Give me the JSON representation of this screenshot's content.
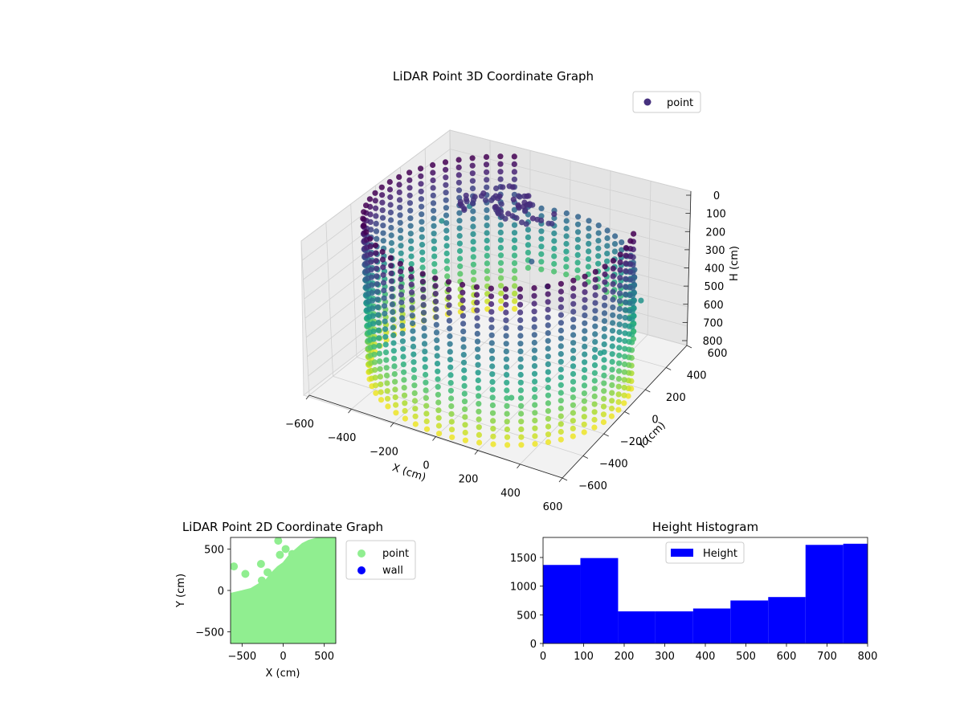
{
  "chart_data": [
    {
      "type": "scatter",
      "projection": "3d",
      "title": "LiDAR Point 3D Coordinate Graph",
      "xlabel": "X (cm)",
      "ylabel": "Y (cm)",
      "zlabel": "H (cm)",
      "x_ticks": [
        "−600",
        "−400",
        "−200",
        "0",
        "200",
        "400",
        "600"
      ],
      "y_ticks": [
        "−600",
        "−400",
        "−200",
        "0",
        "200",
        "400",
        "600"
      ],
      "z_ticks": [
        "0",
        "100",
        "200",
        "300",
        "400",
        "500",
        "600",
        "700",
        "800"
      ],
      "xlim": [
        -600,
        600
      ],
      "ylim": [
        -600,
        600
      ],
      "zlim": [
        0,
        800
      ],
      "z_inverted": true,
      "colormap": "viridis",
      "legend": {
        "position": "upper-right",
        "entries": [
          {
            "label": "point",
            "color": "#46317e"
          }
        ]
      },
      "grid": true,
      "description_of_data": {
        "wall_ring_radius_cm": 570,
        "wall_height_range_cm": [
          0,
          800
        ],
        "central_cluster": {
          "x": -150,
          "y": 300,
          "h": 100
        }
      },
      "sample_points": [
        {
          "x": -560,
          "y": 460,
          "h": 400
        },
        {
          "x": -480,
          "y": 560,
          "h": 350
        },
        {
          "x": -120,
          "y": 320,
          "h": 90
        },
        {
          "x": -60,
          "y": 300,
          "h": 100
        },
        {
          "x": 80,
          "y": 120,
          "h": 250
        },
        {
          "x": 200,
          "y": 40,
          "h": 300
        },
        {
          "x": 520,
          "y": 300,
          "h": 420
        },
        {
          "x": 540,
          "y": -120,
          "h": 450
        },
        {
          "x": 300,
          "y": -480,
          "h": 560
        }
      ]
    },
    {
      "type": "scatter",
      "title": "LiDAR Point 2D Coordinate Graph",
      "xlabel": "X (cm)",
      "ylabel": "Y (cm)",
      "x_ticks": [
        "−500",
        "0",
        "500"
      ],
      "y_ticks": [
        "−500",
        "0",
        "500"
      ],
      "xlim": [
        -640,
        640
      ],
      "ylim": [
        -640,
        640
      ],
      "legend": {
        "position": "outside-right",
        "entries": [
          {
            "label": "point",
            "color": "#90ee90"
          },
          {
            "label": "wall",
            "color": "#0000ff"
          }
        ]
      },
      "series": [
        {
          "name": "point",
          "color": "#90ee90",
          "points": [
            {
              "x": -600,
              "y": 290
            },
            {
              "x": -460,
              "y": 200
            },
            {
              "x": -270,
              "y": 320
            },
            {
              "x": -190,
              "y": 220
            },
            {
              "x": -260,
              "y": 120
            },
            {
              "x": -60,
              "y": 600
            },
            {
              "x": -40,
              "y": 430
            },
            {
              "x": 30,
              "y": 500
            },
            {
              "x": 110,
              "y": 440
            }
          ]
        }
      ]
    },
    {
      "type": "bar",
      "subtype": "histogram",
      "title": "Height Histogram",
      "xlim": [
        0,
        800
      ],
      "ylim": [
        0,
        1850
      ],
      "x_ticks": [
        "0",
        "100",
        "200",
        "300",
        "400",
        "500",
        "600",
        "700",
        "800"
      ],
      "y_ticks": [
        "0",
        "500",
        "1000",
        "1500"
      ],
      "legend": {
        "position": "upper-center",
        "entries": [
          {
            "label": "Height",
            "color": "#0000ff"
          }
        ]
      },
      "series": [
        {
          "name": "Height",
          "color": "#0000ff",
          "bin_edges": [
            0,
            92,
            185,
            277,
            370,
            462,
            555,
            647,
            740,
            800
          ],
          "values": [
            1370,
            1490,
            560,
            560,
            610,
            750,
            810,
            1720,
            1740
          ]
        }
      ]
    }
  ]
}
